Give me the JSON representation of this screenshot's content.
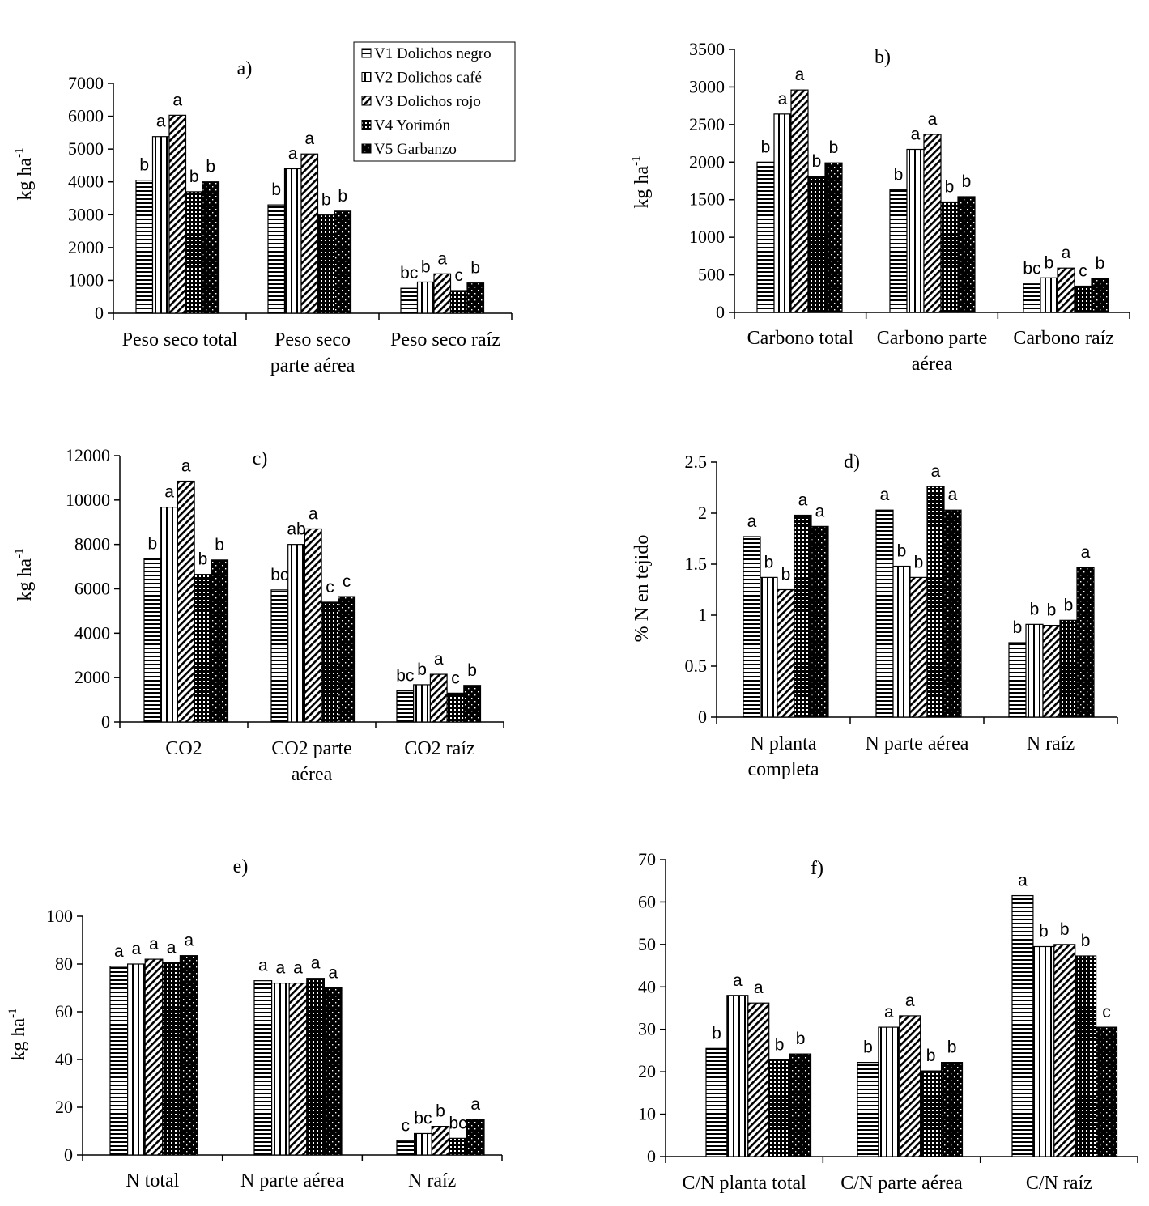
{
  "legend": {
    "entries": [
      "V1 Dolichos negro",
      "V2 Dolichos café",
      "V3 Dolichos rojo",
      "V4 Yorimón",
      "V5 Garbanzo"
    ]
  },
  "chart_data": [
    {
      "type": "bar",
      "title": "a)",
      "ylabel": "kg ha",
      "ylabel_sup": "-1",
      "ylim": [
        0,
        7000
      ],
      "yticks": [
        0,
        1000,
        2000,
        3000,
        4000,
        5000,
        6000,
        7000
      ],
      "categories": [
        [
          "Peso seco total"
        ],
        [
          "Peso seco",
          "parte aérea"
        ],
        [
          "Peso seco raíz"
        ]
      ],
      "series": [
        {
          "name": "V1 Dolichos negro",
          "values": [
            4050,
            3300,
            760
          ]
        },
        {
          "name": "V2 Dolichos café",
          "values": [
            5380,
            4400,
            950
          ]
        },
        {
          "name": "V3 Dolichos rojo",
          "values": [
            6030,
            4850,
            1200
          ]
        },
        {
          "name": "V4 Yorimón",
          "values": [
            3700,
            2990,
            690
          ]
        },
        {
          "name": "V5 Garbanzo",
          "values": [
            4000,
            3110,
            920
          ]
        }
      ],
      "letters": [
        [
          "b",
          "a",
          "a",
          "b",
          "b"
        ],
        [
          "b",
          "a",
          "a",
          "b",
          "b"
        ],
        [
          "bc",
          "b",
          "a",
          "c",
          "b"
        ]
      ]
    },
    {
      "type": "bar",
      "title": "b)",
      "ylabel": "kg ha",
      "ylabel_sup": "-1",
      "ylim": [
        0,
        3500
      ],
      "yticks": [
        0,
        500,
        1000,
        1500,
        2000,
        2500,
        3000,
        3500
      ],
      "categories": [
        [
          "Carbono total"
        ],
        [
          "Carbono parte",
          "aérea"
        ],
        [
          "Carbono raíz"
        ]
      ],
      "series": [
        {
          "name": "V1 Dolichos negro",
          "values": [
            2000,
            1630,
            380
          ]
        },
        {
          "name": "V2 Dolichos café",
          "values": [
            2640,
            2170,
            460
          ]
        },
        {
          "name": "V3 Dolichos rojo",
          "values": [
            2960,
            2370,
            590
          ]
        },
        {
          "name": "V4 Yorimón",
          "values": [
            1810,
            1470,
            350
          ]
        },
        {
          "name": "V5 Garbanzo",
          "values": [
            1990,
            1540,
            450
          ]
        }
      ],
      "letters": [
        [
          "b",
          "a",
          "a",
          "b",
          "b"
        ],
        [
          "b",
          "a",
          "a",
          "b",
          "b"
        ],
        [
          "bc",
          "b",
          "a",
          "c",
          "b"
        ]
      ]
    },
    {
      "type": "bar",
      "title": "c)",
      "ylabel": "kg ha",
      "ylabel_sup": "-1",
      "ylim": [
        0,
        12000
      ],
      "yticks": [
        0,
        2000,
        4000,
        6000,
        8000,
        10000,
        12000
      ],
      "categories": [
        [
          "CO2"
        ],
        [
          "CO2  parte",
          "aérea"
        ],
        [
          "CO2 raíz"
        ]
      ],
      "series": [
        {
          "name": "V1 Dolichos negro",
          "values": [
            7350,
            5950,
            1400
          ]
        },
        {
          "name": "V2 Dolichos café",
          "values": [
            9680,
            8000,
            1680
          ]
        },
        {
          "name": "V3 Dolichos rojo",
          "values": [
            10850,
            8700,
            2150
          ]
        },
        {
          "name": "V4 Yorimón",
          "values": [
            6650,
            5400,
            1300
          ]
        },
        {
          "name": "V5 Garbanzo",
          "values": [
            7300,
            5650,
            1650
          ]
        }
      ],
      "letters": [
        [
          "b",
          "a",
          "a",
          "b",
          "b"
        ],
        [
          "bc",
          "ab",
          "a",
          "c",
          "c"
        ],
        [
          "bc",
          "b",
          "a",
          "c",
          "b"
        ]
      ]
    },
    {
      "type": "bar",
      "title": "d)",
      "ylabel": "% N en tejido",
      "ylabel_sup": "",
      "ylim": [
        0,
        2.5
      ],
      "yticks": [
        0,
        0.5,
        1,
        1.5,
        2,
        2.5
      ],
      "categories": [
        [
          "N  planta",
          "completa"
        ],
        [
          "N parte aérea"
        ],
        [
          "N raíz"
        ]
      ],
      "series": [
        {
          "name": "V1 Dolichos negro",
          "values": [
            1.77,
            2.03,
            0.73
          ]
        },
        {
          "name": "V2 Dolichos café",
          "values": [
            1.37,
            1.48,
            0.91
          ]
        },
        {
          "name": "V3 Dolichos rojo",
          "values": [
            1.25,
            1.37,
            0.9
          ]
        },
        {
          "name": "V4 Yorimón",
          "values": [
            1.98,
            2.26,
            0.95
          ]
        },
        {
          "name": "V5 Garbanzo",
          "values": [
            1.87,
            2.03,
            1.47
          ]
        }
      ],
      "letters": [
        [
          "a",
          "b",
          "b",
          "a",
          "a"
        ],
        [
          "a",
          "b",
          "b",
          "a",
          "a"
        ],
        [
          "b",
          "b",
          "b",
          "b",
          "a"
        ]
      ]
    },
    {
      "type": "bar",
      "title": "e)",
      "ylabel": "kg ha",
      "ylabel_sup": "-1",
      "ylim": [
        0,
        100
      ],
      "yticks": [
        0,
        20,
        40,
        60,
        80,
        100
      ],
      "categories": [
        [
          "N total"
        ],
        [
          "N parte aérea"
        ],
        [
          "N raíz"
        ]
      ],
      "series": [
        {
          "name": "V1 Dolichos negro",
          "values": [
            79,
            73,
            6
          ]
        },
        {
          "name": "V2 Dolichos café",
          "values": [
            80,
            72,
            9
          ]
        },
        {
          "name": "V3 Dolichos rojo",
          "values": [
            82,
            72,
            12
          ]
        },
        {
          "name": "V4 Yorimón",
          "values": [
            80.5,
            74,
            7
          ]
        },
        {
          "name": "V5 Garbanzo",
          "values": [
            83.5,
            70,
            15
          ]
        }
      ],
      "letters": [
        [
          "a",
          "a",
          "a",
          "a",
          "a"
        ],
        [
          "a",
          "a",
          "a",
          "a",
          "a"
        ],
        [
          "c",
          "bc",
          "b",
          "bc",
          "a"
        ]
      ]
    },
    {
      "type": "bar",
      "title": "f)",
      "ylabel": "",
      "ylabel_sup": "",
      "ylim": [
        0,
        70
      ],
      "yticks": [
        0,
        10,
        20,
        30,
        40,
        50,
        60,
        70
      ],
      "categories": [
        [
          "C/N planta total"
        ],
        [
          "C/N parte aérea"
        ],
        [
          "C/N raíz"
        ]
      ],
      "series": [
        {
          "name": "V1 Dolichos negro",
          "values": [
            25.5,
            22.2,
            61.5
          ]
        },
        {
          "name": "V2 Dolichos café",
          "values": [
            38,
            30.5,
            49.5
          ]
        },
        {
          "name": "V3 Dolichos rojo",
          "values": [
            36.2,
            33.2,
            50
          ]
        },
        {
          "name": "V4 Yorimón",
          "values": [
            22.8,
            20.2,
            47.3
          ]
        },
        {
          "name": "V5 Garbanzo",
          "values": [
            24.2,
            22.2,
            30.5
          ]
        }
      ],
      "letters": [
        [
          "b",
          "a",
          "a",
          "b",
          "b"
        ],
        [
          "b",
          "a",
          "a",
          "b",
          "b"
        ],
        [
          "a",
          "b",
          "b",
          "b",
          "c"
        ]
      ]
    }
  ]
}
